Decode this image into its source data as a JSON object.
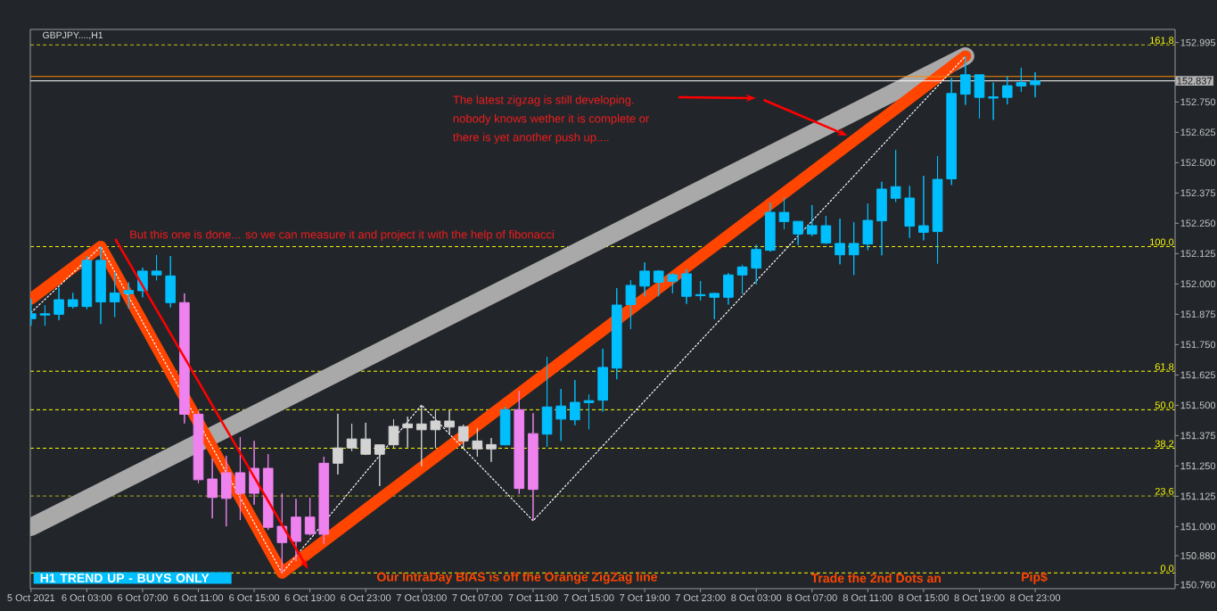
{
  "chart_data": {
    "type": "candlestick",
    "title": "GBPJPY....,H1",
    "x": [
      "2021-10-05T23:00",
      "2021-10-06T00:00",
      "2021-10-06T01:00",
      "2021-10-06T02:00",
      "2021-10-06T03:00",
      "2021-10-06T04:00",
      "2021-10-06T05:00",
      "2021-10-06T06:00",
      "2021-10-06T07:00",
      "2021-10-06T08:00",
      "2021-10-06T09:00",
      "2021-10-06T10:00",
      "2021-10-06T11:00",
      "2021-10-06T12:00",
      "2021-10-06T13:00",
      "2021-10-06T14:00",
      "2021-10-06T15:00",
      "2021-10-06T16:00",
      "2021-10-06T17:00",
      "2021-10-06T18:00",
      "2021-10-06T19:00",
      "2021-10-06T20:00",
      "2021-10-06T21:00",
      "2021-10-06T22:00",
      "2021-10-06T23:00",
      "2021-10-07T00:00",
      "2021-10-07T01:00",
      "2021-10-07T02:00",
      "2021-10-07T03:00",
      "2021-10-07T04:00",
      "2021-10-07T05:00",
      "2021-10-07T06:00",
      "2021-10-07T07:00",
      "2021-10-07T08:00",
      "2021-10-07T09:00",
      "2021-10-07T10:00",
      "2021-10-07T11:00",
      "2021-10-07T12:00",
      "2021-10-07T13:00",
      "2021-10-07T14:00",
      "2021-10-07T15:00",
      "2021-10-07T16:00",
      "2021-10-07T17:00",
      "2021-10-07T18:00",
      "2021-10-07T19:00",
      "2021-10-07T20:00",
      "2021-10-07T21:00",
      "2021-10-07T22:00",
      "2021-10-07T23:00",
      "2021-10-08T00:00",
      "2021-10-08T01:00",
      "2021-10-08T02:00",
      "2021-10-08T03:00",
      "2021-10-08T04:00",
      "2021-10-08T05:00",
      "2021-10-08T06:00",
      "2021-10-08T07:00",
      "2021-10-08T08:00",
      "2021-10-08T09:00",
      "2021-10-08T10:00",
      "2021-10-08T11:00",
      "2021-10-08T12:00",
      "2021-10-08T13:00",
      "2021-10-08T14:00",
      "2021-10-08T15:00",
      "2021-10-08T16:00",
      "2021-10-08T17:00",
      "2021-10-08T18:00",
      "2021-10-08T19:00",
      "2021-10-08T20:00",
      "2021-10-08T21:00",
      "2021-10-08T22:00",
      "2021-10-08T23:00"
    ],
    "ohlc": [
      [
        151.857,
        151.939,
        151.828,
        151.877
      ],
      [
        151.877,
        151.912,
        151.828,
        151.872
      ],
      [
        151.875,
        151.984,
        151.851,
        151.935
      ],
      [
        151.935,
        151.963,
        151.899,
        151.907
      ],
      [
        151.907,
        152.114,
        151.896,
        152.097
      ],
      [
        152.097,
        152.154,
        151.835,
        151.926
      ],
      [
        151.926,
        152.049,
        151.864,
        151.963
      ],
      [
        151.96,
        152.006,
        151.899,
        151.973
      ],
      [
        151.972,
        152.067,
        151.945,
        152.053
      ],
      [
        152.053,
        152.119,
        152.015,
        152.037
      ],
      [
        152.033,
        152.115,
        151.903,
        151.923
      ],
      [
        151.923,
        151.961,
        151.425,
        151.463
      ],
      [
        151.463,
        151.479,
        151.179,
        151.193
      ],
      [
        151.196,
        151.281,
        151.034,
        151.12
      ],
      [
        151.116,
        151.292,
        151.001,
        151.222
      ],
      [
        151.222,
        151.369,
        151.027,
        151.137
      ],
      [
        151.137,
        151.353,
        151.09,
        151.24
      ],
      [
        151.24,
        151.298,
        150.986,
        150.997
      ],
      [
        151.001,
        151.136,
        150.809,
        150.934
      ],
      [
        150.939,
        151.114,
        150.858,
        151.039
      ],
      [
        151.039,
        151.119,
        150.964,
        150.969
      ],
      [
        150.968,
        151.288,
        150.928,
        151.261
      ],
      [
        151.261,
        151.465,
        151.215,
        151.324
      ],
      [
        151.324,
        151.424,
        151.311,
        151.361
      ],
      [
        151.361,
        151.428,
        151.295,
        151.298
      ],
      [
        151.298,
        151.338,
        151.167,
        151.337
      ],
      [
        151.337,
        151.442,
        151.326,
        151.413
      ],
      [
        151.407,
        151.453,
        151.326,
        151.423
      ],
      [
        151.423,
        151.501,
        151.249,
        151.399
      ],
      [
        151.399,
        151.482,
        151.324,
        151.435
      ],
      [
        151.435,
        151.479,
        151.379,
        151.41
      ],
      [
        151.412,
        151.42,
        151.324,
        151.353
      ],
      [
        151.353,
        151.406,
        151.289,
        151.32
      ],
      [
        151.32,
        151.365,
        151.267,
        151.338
      ],
      [
        151.337,
        151.494,
        151.335,
        151.482
      ],
      [
        151.482,
        151.56,
        151.135,
        151.157
      ],
      [
        151.153,
        151.467,
        151.024,
        151.383
      ],
      [
        151.381,
        151.699,
        151.329,
        151.493
      ],
      [
        151.497,
        151.567,
        151.353,
        151.443
      ],
      [
        151.44,
        151.604,
        151.418,
        151.512
      ],
      [
        151.511,
        151.544,
        151.401,
        151.519
      ],
      [
        151.521,
        151.733,
        151.474,
        151.656
      ],
      [
        151.653,
        151.983,
        151.607,
        151.913
      ],
      [
        151.915,
        152.015,
        151.814,
        151.994
      ],
      [
        151.991,
        152.089,
        151.949,
        152.053
      ],
      [
        152.053,
        152.057,
        151.949,
        152.007
      ],
      [
        152.011,
        152.045,
        151.962,
        152.038
      ],
      [
        152.042,
        152.061,
        151.918,
        151.949
      ],
      [
        151.952,
        152.012,
        151.932,
        151.956
      ],
      [
        151.961,
        151.964,
        151.855,
        151.945
      ],
      [
        151.945,
        152.045,
        151.915,
        152.037
      ],
      [
        152.037,
        152.079,
        151.96,
        152.07
      ],
      [
        152.065,
        152.161,
        151.999,
        152.142
      ],
      [
        152.139,
        152.335,
        152.133,
        152.295
      ],
      [
        152.295,
        152.357,
        152.226,
        152.257
      ],
      [
        152.258,
        152.258,
        152.161,
        152.206
      ],
      [
        152.206,
        152.325,
        152.197,
        152.24
      ],
      [
        152.24,
        152.28,
        152.165,
        152.169
      ],
      [
        152.167,
        152.269,
        152.081,
        152.12
      ],
      [
        152.12,
        152.254,
        152.037,
        152.167
      ],
      [
        152.165,
        152.331,
        152.139,
        152.262
      ],
      [
        152.26,
        152.421,
        152.118,
        152.391
      ],
      [
        152.401,
        152.552,
        152.338,
        152.353
      ],
      [
        152.354,
        152.404,
        152.19,
        152.238
      ],
      [
        152.24,
        152.446,
        152.18,
        152.213
      ],
      [
        152.216,
        152.527,
        152.084,
        152.431
      ],
      [
        152.433,
        152.849,
        152.408,
        152.785
      ],
      [
        152.782,
        152.939,
        152.738,
        152.862
      ],
      [
        152.862,
        152.862,
        152.683,
        152.769
      ],
      [
        152.766,
        152.83,
        152.676,
        152.771
      ],
      [
        152.769,
        152.855,
        152.74,
        152.817
      ],
      [
        152.816,
        152.891,
        152.792,
        152.83
      ],
      [
        152.821,
        152.873,
        152.769,
        152.837
      ]
    ],
    "colors": [
      "#00bfff",
      "#00bfff",
      "#00bfff",
      "#00bfff",
      "#00bfff",
      "#00bfff",
      "#00bfff",
      "#00bfff",
      "#00bfff",
      "#00bfff",
      "#00bfff",
      "#ee82ee",
      "#ee82ee",
      "#ee82ee",
      "#ee82ee",
      "#ee82ee",
      "#ee82ee",
      "#ee82ee",
      "#ee82ee",
      "#ee82ee",
      "#ee82ee",
      "#ee82ee",
      "#d3d3d3",
      "#d3d3d3",
      "#d3d3d3",
      "#d3d3d3",
      "#d3d3d3",
      "#d3d3d3",
      "#d3d3d3",
      "#d3d3d3",
      "#d3d3d3",
      "#d3d3d3",
      "#d3d3d3",
      "#d3d3d3",
      "#00bfff",
      "#ee82ee",
      "#ee82ee",
      "#00bfff",
      "#00bfff",
      "#00bfff",
      "#00bfff",
      "#00bfff",
      "#00bfff",
      "#00bfff",
      "#00bfff",
      "#00bfff",
      "#00bfff",
      "#00bfff",
      "#00bfff",
      "#00bfff",
      "#00bfff",
      "#00bfff",
      "#00bfff",
      "#00bfff",
      "#00bfff",
      "#00bfff",
      "#00bfff",
      "#00bfff",
      "#00bfff",
      "#00bfff",
      "#00bfff",
      "#00bfff",
      "#00bfff",
      "#00bfff",
      "#00bfff",
      "#00bfff",
      "#00bfff",
      "#00bfff",
      "#00bfff",
      "#00bfff",
      "#00bfff",
      "#00bfff",
      "#00bfff"
    ],
    "series": [
      {
        "type": "line",
        "color": "#a9a9a9",
        "x": [
          "2021-10-05T23:00",
          "2021-10-08T18:00"
        ],
        "values": [
          150.998,
          152.939
        ]
      },
      {
        "type": "line",
        "color": "#ff4500",
        "x": [
          "2021-10-05T23:00",
          "2021-10-06T04:00",
          "2021-10-06T17:00",
          "2021-10-08T18:00"
        ],
        "values": [
          151.939,
          152.154,
          150.809,
          152.939
        ]
      },
      {
        "type": "line",
        "color": "#ffffff",
        "line_style": "dotted",
        "x": [
          "2021-10-05T23:00",
          "2021-10-06T04:00",
          "2021-10-06T17:00",
          "2021-10-07T03:00",
          "2021-10-07T11:00",
          "2021-10-08T18:00"
        ],
        "values": [
          151.882,
          152.154,
          150.809,
          151.501,
          151.024,
          152.939
        ]
      }
    ],
    "xlim": [
      "2021-10-05T22:57",
      "2021-10-09T09:02"
    ],
    "xticks": [
      {
        "value": "2021-10-05T23:00",
        "label": "5 Oct 2021"
      },
      {
        "value": "2021-10-06T03:00",
        "label": "6 Oct 03:00"
      },
      {
        "value": "2021-10-06T07:00",
        "label": "6 Oct 07:00"
      },
      {
        "value": "2021-10-06T11:00",
        "label": "6 Oct 11:00"
      },
      {
        "value": "2021-10-06T15:00",
        "label": "6 Oct 15:00"
      },
      {
        "value": "2021-10-06T19:00",
        "label": "6 Oct 19:00"
      },
      {
        "value": "2021-10-06T23:00",
        "label": "6 Oct 23:00"
      },
      {
        "value": "2021-10-07T03:00",
        "label": "7 Oct 03:00"
      },
      {
        "value": "2021-10-07T07:00",
        "label": "7 Oct 07:00"
      },
      {
        "value": "2021-10-07T11:00",
        "label": "7 Oct 11:00"
      },
      {
        "value": "2021-10-07T15:00",
        "label": "7 Oct 15:00"
      },
      {
        "value": "2021-10-07T19:00",
        "label": "7 Oct 19:00"
      },
      {
        "value": "2021-10-07T23:00",
        "label": "7 Oct 23:00"
      },
      {
        "value": "2021-10-08T03:00",
        "label": "8 Oct 03:00"
      },
      {
        "value": "2021-10-08T07:00",
        "label": "8 Oct 07:00"
      },
      {
        "value": "2021-10-08T11:00",
        "label": "8 Oct 11:00"
      },
      {
        "value": "2021-10-08T15:00",
        "label": "8 Oct 15:00"
      },
      {
        "value": "2021-10-08T19:00",
        "label": "8 Oct 19:00"
      },
      {
        "value": "2021-10-08T23:00",
        "label": "8 Oct 23:00"
      }
    ],
    "ylim": [
      150.744,
      153.049
    ],
    "yticks": [
      {
        "value": 150.76,
        "label": "150.760"
      },
      {
        "value": 150.88,
        "label": "150.880"
      },
      {
        "value": 151.0,
        "label": "151.000"
      },
      151.125,
      {
        "value": 151.25,
        "label": "151.250"
      },
      151.375,
      {
        "value": 151.5,
        "label": "151.500"
      },
      151.625,
      {
        "value": 151.75,
        "label": "151.750"
      },
      151.875,
      {
        "value": 152.0,
        "label": "152.000"
      },
      152.125,
      {
        "value": 152.25,
        "label": "152.250"
      },
      152.375,
      {
        "value": 152.5,
        "label": "152.500"
      },
      152.625,
      {
        "value": 152.75,
        "label": "152.750"
      },
      152.995
    ],
    "y2lim": [
      -4.833,
      166.543
    ],
    "ref_lines": [
      {
        "axis": "y2",
        "value": 0.0,
        "label": "0.0",
        "color": "#ffff00",
        "line_style": "dashed"
      },
      {
        "axis": "y2",
        "value": 23.6,
        "label": "23.6",
        "color": "#ffff00",
        "line_style": "dashed"
      },
      {
        "axis": "y2",
        "value": 38.2,
        "label": "38.2",
        "color": "#ffff00",
        "line_style": "dashed"
      },
      {
        "axis": "y2",
        "value": 50.0,
        "label": "50.0",
        "color": "#ffff00",
        "line_style": "dashed"
      },
      {
        "axis": "y2",
        "value": 61.8,
        "label": "61.8",
        "color": "#ffff00",
        "line_style": "dashed"
      },
      {
        "axis": "y2",
        "value": 100.0,
        "label": "100.0",
        "color": "#ffff00",
        "line_style": "dashed"
      },
      {
        "axis": "y2",
        "value": 161.8,
        "label": "161.8",
        "color": "#ffff00",
        "line_style": "dashed"
      },
      {
        "axis": "y",
        "value": 152.855,
        "color": "#ff8c00",
        "line_style": "solid"
      },
      {
        "axis": "y",
        "value": 152.837,
        "label": "152.837",
        "color": "#ffffff",
        "line_style": "solid"
      }
    ],
    "annotations": [
      "But this one is done... so we can measure it and project it with the help of fibonacci",
      "The latest zigzag is still developing.",
      "nobody knows wether it is complete or",
      "there is yet another push up....",
      "H1 TREND UP - BUYS ONLY",
      "Our IntraDay BIAS is off the Orange ZigZag line",
      "Trade the 2nd Dots an",
      "Pip$"
    ]
  }
}
